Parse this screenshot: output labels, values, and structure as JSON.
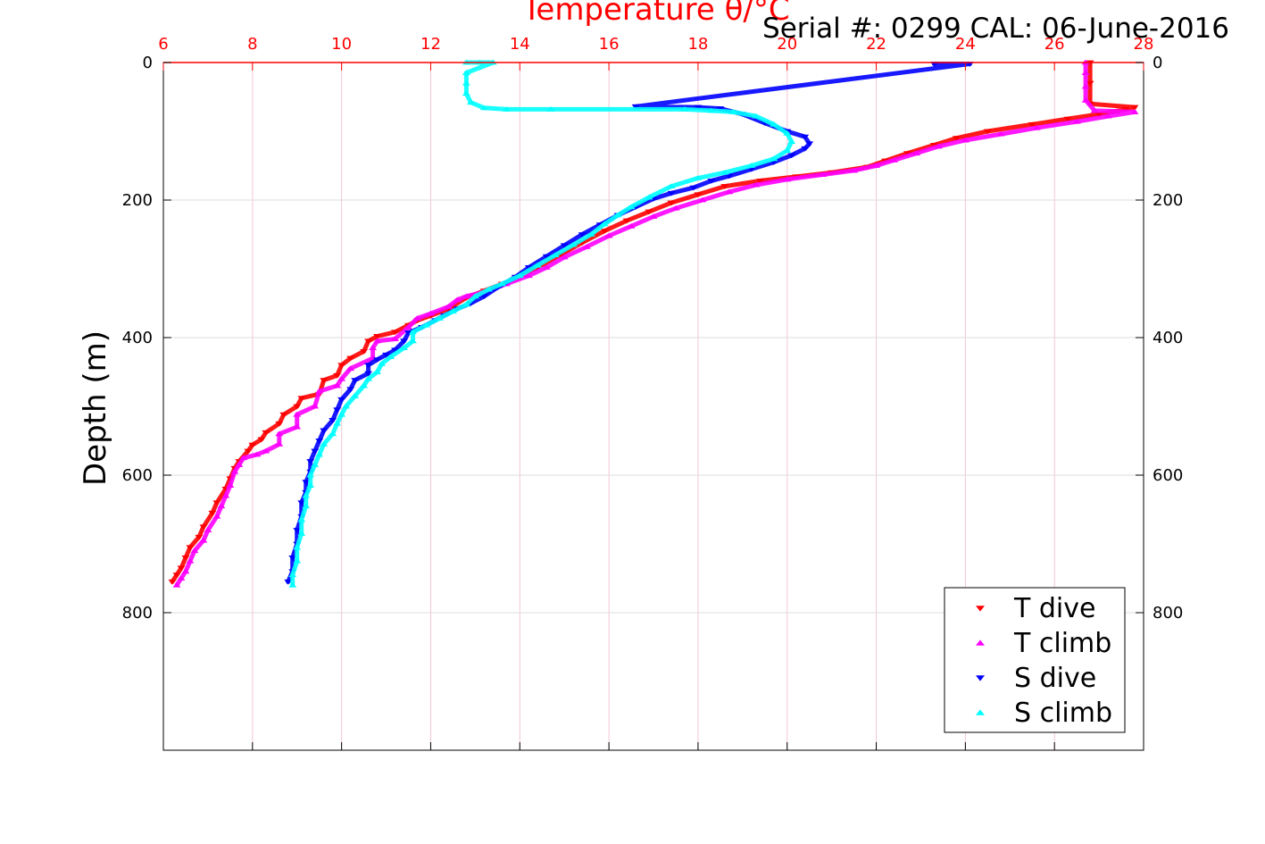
{
  "chart_data": {
    "type": "scatter",
    "title": "Temperature θ/°C",
    "subtitle": "Serial #: 0299 CAL: 06-June-2016",
    "xlabel": "Temperature θ/°C",
    "ylabel": "Depth (m)",
    "xlim": [
      6,
      28
    ],
    "ylim": [
      0,
      1000
    ],
    "y_reversed": true,
    "x_ticks": [
      6,
      8,
      10,
      12,
      14,
      16,
      18,
      20,
      22,
      24,
      26,
      28
    ],
    "y_ticks": [
      0,
      200,
      400,
      600,
      800
    ],
    "grid": true,
    "legend_position": "bottom-right",
    "series": [
      {
        "name": "T dive",
        "color": "#ff0000",
        "marker": "triangle-down",
        "points": [
          [
            26.8,
            0
          ],
          [
            26.8,
            30
          ],
          [
            26.8,
            60
          ],
          [
            27.8,
            65
          ],
          [
            27.6,
            68
          ],
          [
            27.0,
            75
          ],
          [
            26.3,
            82
          ],
          [
            25.5,
            90
          ],
          [
            24.5,
            100
          ],
          [
            23.8,
            110
          ],
          [
            23.3,
            120
          ],
          [
            22.7,
            132
          ],
          [
            22.2,
            143
          ],
          [
            21.8,
            152
          ],
          [
            21.0,
            160
          ],
          [
            20.2,
            166
          ],
          [
            19.4,
            172
          ],
          [
            18.6,
            180
          ],
          [
            18.0,
            192
          ],
          [
            17.4,
            204
          ],
          [
            16.9,
            217
          ],
          [
            16.4,
            230
          ],
          [
            15.9,
            245
          ],
          [
            15.4,
            262
          ],
          [
            14.9,
            280
          ],
          [
            14.4,
            298
          ],
          [
            14.0,
            312
          ],
          [
            13.6,
            322
          ],
          [
            13.2,
            332
          ],
          [
            12.8,
            342
          ],
          [
            12.4,
            358
          ],
          [
            12.0,
            368
          ],
          [
            11.7,
            375
          ],
          [
            11.5,
            382
          ],
          [
            11.2,
            392
          ],
          [
            10.8,
            398
          ],
          [
            10.6,
            405
          ],
          [
            10.5,
            420
          ],
          [
            10.2,
            430
          ],
          [
            10.0,
            440
          ],
          [
            9.9,
            455
          ],
          [
            9.6,
            462
          ],
          [
            9.5,
            482
          ],
          [
            9.1,
            488
          ],
          [
            9.0,
            500
          ],
          [
            8.7,
            512
          ],
          [
            8.6,
            525
          ],
          [
            8.3,
            538
          ],
          [
            8.2,
            548
          ],
          [
            8.0,
            556
          ],
          [
            7.9,
            565
          ],
          [
            7.7,
            580
          ],
          [
            7.6,
            590
          ],
          [
            7.5,
            605
          ],
          [
            7.4,
            620
          ],
          [
            7.2,
            640
          ],
          [
            7.1,
            655
          ],
          [
            6.9,
            675
          ],
          [
            6.8,
            690
          ],
          [
            6.6,
            705
          ],
          [
            6.5,
            720
          ],
          [
            6.4,
            735
          ],
          [
            6.3,
            745
          ],
          [
            6.2,
            755
          ]
        ]
      },
      {
        "name": "T climb",
        "color": "#ff00ff",
        "marker": "triangle-up",
        "points": [
          [
            26.7,
            0
          ],
          [
            26.7,
            15
          ],
          [
            26.7,
            35
          ],
          [
            26.7,
            55
          ],
          [
            26.9,
            70
          ],
          [
            27.8,
            72
          ],
          [
            27.2,
            78
          ],
          [
            26.5,
            86
          ],
          [
            25.6,
            95
          ],
          [
            24.8,
            104
          ],
          [
            24.0,
            113
          ],
          [
            23.4,
            122
          ],
          [
            22.9,
            132
          ],
          [
            22.4,
            142
          ],
          [
            22.0,
            150
          ],
          [
            21.5,
            157
          ],
          [
            20.8,
            163
          ],
          [
            20.0,
            170
          ],
          [
            19.3,
            178
          ],
          [
            18.7,
            188
          ],
          [
            18.1,
            200
          ],
          [
            17.5,
            212
          ],
          [
            17.0,
            224
          ],
          [
            16.5,
            238
          ],
          [
            16.0,
            252
          ],
          [
            15.5,
            268
          ],
          [
            15.0,
            283
          ],
          [
            14.6,
            298
          ],
          [
            14.2,
            310
          ],
          [
            13.7,
            322
          ],
          [
            13.3,
            332
          ],
          [
            12.8,
            340
          ],
          [
            12.6,
            345
          ],
          [
            12.4,
            355
          ],
          [
            12.0,
            365
          ],
          [
            11.7,
            372
          ],
          [
            11.5,
            385
          ],
          [
            11.2,
            402
          ],
          [
            10.8,
            405
          ],
          [
            10.7,
            415
          ],
          [
            10.7,
            430
          ],
          [
            10.2,
            445
          ],
          [
            10.0,
            460
          ],
          [
            9.9,
            470
          ],
          [
            9.5,
            478
          ],
          [
            9.4,
            500
          ],
          [
            9.0,
            512
          ],
          [
            9.0,
            530
          ],
          [
            8.6,
            540
          ],
          [
            8.6,
            555
          ],
          [
            8.3,
            565
          ],
          [
            8.1,
            570
          ],
          [
            7.8,
            575
          ],
          [
            7.7,
            585
          ],
          [
            7.6,
            595
          ],
          [
            7.5,
            615
          ],
          [
            7.4,
            630
          ],
          [
            7.3,
            645
          ],
          [
            7.2,
            660
          ],
          [
            7.0,
            680
          ],
          [
            6.9,
            695
          ],
          [
            6.7,
            710
          ],
          [
            6.6,
            725
          ],
          [
            6.5,
            740
          ],
          [
            6.4,
            750
          ],
          [
            6.3,
            760
          ]
        ]
      },
      {
        "name": "S dive",
        "color": "#0000ff",
        "marker": "triangle-down",
        "points": [
          [
            23.3,
            2
          ],
          [
            24.1,
            2
          ],
          [
            16.6,
            64
          ],
          [
            18.0,
            65
          ],
          [
            18.5,
            67
          ],
          [
            19.0,
            75
          ],
          [
            19.5,
            88
          ],
          [
            20.0,
            100
          ],
          [
            20.4,
            108
          ],
          [
            20.5,
            118
          ],
          [
            20.4,
            125
          ],
          [
            20.1,
            135
          ],
          [
            19.7,
            145
          ],
          [
            19.2,
            155
          ],
          [
            18.7,
            165
          ],
          [
            18.3,
            172
          ],
          [
            17.9,
            182
          ],
          [
            17.4,
            190
          ],
          [
            17.0,
            198
          ],
          [
            16.6,
            210
          ],
          [
            16.2,
            222
          ],
          [
            15.8,
            236
          ],
          [
            15.4,
            250
          ],
          [
            15.0,
            266
          ],
          [
            14.6,
            282
          ],
          [
            14.2,
            298
          ],
          [
            13.9,
            312
          ],
          [
            13.5,
            327
          ],
          [
            13.2,
            340
          ],
          [
            12.9,
            350
          ],
          [
            12.6,
            358
          ],
          [
            12.3,
            368
          ],
          [
            12.1,
            375
          ],
          [
            11.8,
            385
          ],
          [
            11.5,
            393
          ],
          [
            11.4,
            405
          ],
          [
            11.2,
            418
          ],
          [
            11.0,
            425
          ],
          [
            10.8,
            432
          ],
          [
            10.6,
            440
          ],
          [
            10.6,
            452
          ],
          [
            10.3,
            462
          ],
          [
            10.2,
            475
          ],
          [
            10.0,
            490
          ],
          [
            9.9,
            505
          ],
          [
            9.8,
            520
          ],
          [
            9.6,
            535
          ],
          [
            9.5,
            550
          ],
          [
            9.4,
            565
          ],
          [
            9.3,
            580
          ],
          [
            9.3,
            595
          ],
          [
            9.2,
            610
          ],
          [
            9.2,
            625
          ],
          [
            9.1,
            640
          ],
          [
            9.1,
            660
          ],
          [
            9.0,
            680
          ],
          [
            9.0,
            700
          ],
          [
            8.9,
            720
          ],
          [
            8.9,
            740
          ],
          [
            8.8,
            755
          ]
        ]
      },
      {
        "name": "S climb",
        "color": "#00ffff",
        "marker": "triangle-up",
        "points": [
          [
            12.8,
            0
          ],
          [
            13.1,
            0
          ],
          [
            13.4,
            0
          ],
          [
            12.8,
            15
          ],
          [
            12.8,
            30
          ],
          [
            12.8,
            45
          ],
          [
            12.9,
            58
          ],
          [
            13.2,
            66
          ],
          [
            13.7,
            68
          ],
          [
            14.7,
            68
          ],
          [
            17.7,
            68
          ],
          [
            18.3,
            70
          ],
          [
            18.8,
            72
          ],
          [
            19.3,
            78
          ],
          [
            19.7,
            90
          ],
          [
            20.0,
            103
          ],
          [
            20.1,
            115
          ],
          [
            20.0,
            128
          ],
          [
            19.7,
            140
          ],
          [
            19.2,
            150
          ],
          [
            18.6,
            160
          ],
          [
            18.0,
            168
          ],
          [
            17.4,
            180
          ],
          [
            16.9,
            196
          ],
          [
            16.5,
            210
          ],
          [
            16.2,
            222
          ],
          [
            15.9,
            235
          ],
          [
            15.6,
            250
          ],
          [
            15.2,
            265
          ],
          [
            14.8,
            280
          ],
          [
            14.4,
            295
          ],
          [
            14.0,
            310
          ],
          [
            13.6,
            322
          ],
          [
            13.3,
            330
          ],
          [
            13.0,
            340
          ],
          [
            12.8,
            352
          ],
          [
            12.5,
            362
          ],
          [
            12.2,
            372
          ],
          [
            11.9,
            382
          ],
          [
            11.6,
            392
          ],
          [
            11.6,
            405
          ],
          [
            11.4,
            415
          ],
          [
            11.1,
            428
          ],
          [
            10.9,
            438
          ],
          [
            10.8,
            450
          ],
          [
            10.6,
            460
          ],
          [
            10.5,
            470
          ],
          [
            10.3,
            485
          ],
          [
            10.1,
            500
          ],
          [
            10.0,
            512
          ],
          [
            9.9,
            525
          ],
          [
            9.8,
            540
          ],
          [
            9.6,
            555
          ],
          [
            9.5,
            570
          ],
          [
            9.4,
            585
          ],
          [
            9.3,
            600
          ],
          [
            9.3,
            615
          ],
          [
            9.2,
            630
          ],
          [
            9.2,
            645
          ],
          [
            9.1,
            665
          ],
          [
            9.1,
            685
          ],
          [
            9.0,
            705
          ],
          [
            9.0,
            725
          ],
          [
            8.9,
            745
          ],
          [
            8.9,
            760
          ]
        ]
      }
    ]
  }
}
